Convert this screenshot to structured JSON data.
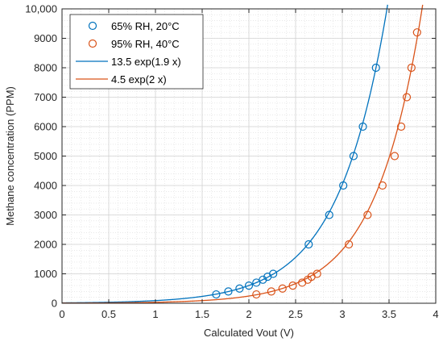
{
  "chart_data": {
    "type": "scatter",
    "xlabel": "Calculated Vout (V)",
    "ylabel": "Methane concentration (PPM)",
    "xlim": [
      0,
      4
    ],
    "ylim": [
      0,
      10000
    ],
    "xticks": [
      0,
      0.5,
      1,
      1.5,
      2,
      2.5,
      3,
      3.5,
      4
    ],
    "xtick_labels": [
      "0",
      "0.5",
      "1",
      "1.5",
      "2",
      "2.5",
      "3",
      "3.5",
      "4"
    ],
    "yticks": [
      0,
      1000,
      2000,
      3000,
      4000,
      5000,
      6000,
      7000,
      8000,
      9000,
      10000
    ],
    "ytick_labels": [
      "0",
      "1000",
      "2000",
      "3000",
      "4000",
      "5000",
      "6000",
      "7000",
      "8000",
      "9000",
      "10,000"
    ],
    "grid": true,
    "minor_grid": true,
    "legend_position": "top-left",
    "colors": {
      "blue": "#0072BD",
      "orange": "#D95319"
    },
    "series": [
      {
        "name": "65% RH, 20°C",
        "kind": "markers",
        "marker": "circle",
        "color": "#0072BD",
        "x": [
          1.65,
          1.78,
          1.9,
          2.0,
          2.08,
          2.15,
          2.2,
          2.26,
          2.64,
          2.86,
          3.01,
          3.12,
          3.22,
          3.36
        ],
        "y": [
          300,
          400,
          500,
          600,
          700,
          800,
          900,
          1000,
          2000,
          3000,
          4000,
          5000,
          6000,
          8000
        ]
      },
      {
        "name": "95% RH, 40°C",
        "kind": "markers",
        "marker": "circle",
        "color": "#D95319",
        "x": [
          2.08,
          2.24,
          2.36,
          2.47,
          2.57,
          2.63,
          2.67,
          2.73,
          3.07,
          3.27,
          3.43,
          3.56,
          3.63,
          3.69,
          3.74,
          3.8
        ],
        "y": [
          300,
          400,
          500,
          600,
          700,
          800,
          900,
          1000,
          2000,
          3000,
          4000,
          5000,
          6000,
          7000,
          8000,
          9200
        ]
      },
      {
        "name": "13.5 exp(1.9 x)",
        "kind": "line",
        "color": "#0072BD",
        "a": 13.5,
        "b": 1.9
      },
      {
        "name": "4.5 exp(2 x)",
        "kind": "line",
        "color": "#D95319",
        "a": 4.5,
        "b": 2
      }
    ]
  }
}
